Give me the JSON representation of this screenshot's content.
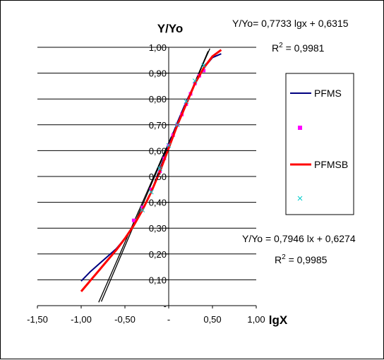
{
  "chart_data": {
    "type": "scatter",
    "ylabel": "Y/Yo",
    "xlabel": "lgX",
    "xlim": [
      -1.5,
      1.0
    ],
    "ylim": [
      0.0,
      1.0
    ],
    "x_tick_labels": [
      "-1,50",
      "-1,00",
      "-0,50",
      "-",
      "0,50",
      "1,00"
    ],
    "x_ticks": [
      -1.5,
      -1.0,
      -0.5,
      0.0,
      0.5,
      1.0
    ],
    "y_tick_labels": [
      "-",
      "0,10",
      "0,20",
      "0,30",
      "0,40",
      "0,50",
      "0,60",
      "0,70",
      "0,80",
      "0,90",
      "1,00"
    ],
    "y_ticks": [
      0.0,
      0.1,
      0.2,
      0.3,
      0.4,
      0.5,
      0.6,
      0.7,
      0.8,
      0.9,
      1.0
    ],
    "grid": "horizontal",
    "legend_placement": "right",
    "annotations": [
      {
        "line1": "Y/Yo= 0,7733 lgx + 0,6315",
        "line2": "R",
        "sup": "2",
        "line2_rest": " = 0,9981"
      },
      {
        "line1": "Y/Yo = 0,7946 lx + 0,6274",
        "line2": "R",
        "sup": "2",
        "line2_rest": " = 0,9985"
      }
    ],
    "series": [
      {
        "name": "PFMS",
        "kind": "line",
        "color": "#000080",
        "x": [
          -1.0,
          -0.9,
          -0.8,
          -0.7,
          -0.6,
          -0.5,
          -0.4,
          -0.3,
          -0.2,
          -0.1,
          0.0,
          0.1,
          0.2,
          0.3,
          0.4,
          0.5,
          0.6
        ],
        "y": [
          0.095,
          0.13,
          0.16,
          0.19,
          0.22,
          0.26,
          0.31,
          0.37,
          0.44,
          0.53,
          0.62,
          0.71,
          0.79,
          0.86,
          0.92,
          0.96,
          0.975
        ]
      },
      {
        "name": "",
        "kind": "points",
        "marker": "square",
        "color": "#ff00ff",
        "x": [
          -0.4,
          -0.3,
          -0.2,
          -0.1,
          -0.05,
          0.0,
          0.05,
          0.1,
          0.15,
          0.2,
          0.25,
          0.3,
          0.35,
          0.4
        ],
        "y": [
          0.33,
          0.38,
          0.45,
          0.52,
          0.57,
          0.62,
          0.66,
          0.7,
          0.74,
          0.78,
          0.82,
          0.86,
          0.89,
          0.91
        ]
      },
      {
        "name": "PFMSB",
        "kind": "line",
        "color": "#ff0000",
        "x": [
          -1.0,
          -0.9,
          -0.8,
          -0.7,
          -0.6,
          -0.5,
          -0.4,
          -0.3,
          -0.2,
          -0.1,
          0.0,
          0.1,
          0.2,
          0.3,
          0.4,
          0.5,
          0.6
        ],
        "y": [
          0.055,
          0.095,
          0.135,
          0.175,
          0.215,
          0.26,
          0.31,
          0.37,
          0.44,
          0.52,
          0.61,
          0.7,
          0.78,
          0.86,
          0.92,
          0.965,
          0.99
        ]
      },
      {
        "name": "",
        "kind": "points",
        "marker": "x",
        "color": "#00cccc",
        "x": [
          -0.3,
          -0.2,
          -0.1,
          0.0,
          0.1,
          0.2,
          0.3,
          0.4
        ],
        "y": [
          0.37,
          0.44,
          0.53,
          0.62,
          0.7,
          0.79,
          0.87,
          0.93
        ]
      }
    ],
    "trendlines": [
      {
        "slope": 0.7733,
        "intercept": 0.6315,
        "x_from": -0.8,
        "x_to": 0.47,
        "color": "#000000"
      },
      {
        "slope": 0.7946,
        "intercept": 0.6274,
        "x_from": -0.77,
        "x_to": 0.45,
        "color": "#000000"
      }
    ]
  }
}
